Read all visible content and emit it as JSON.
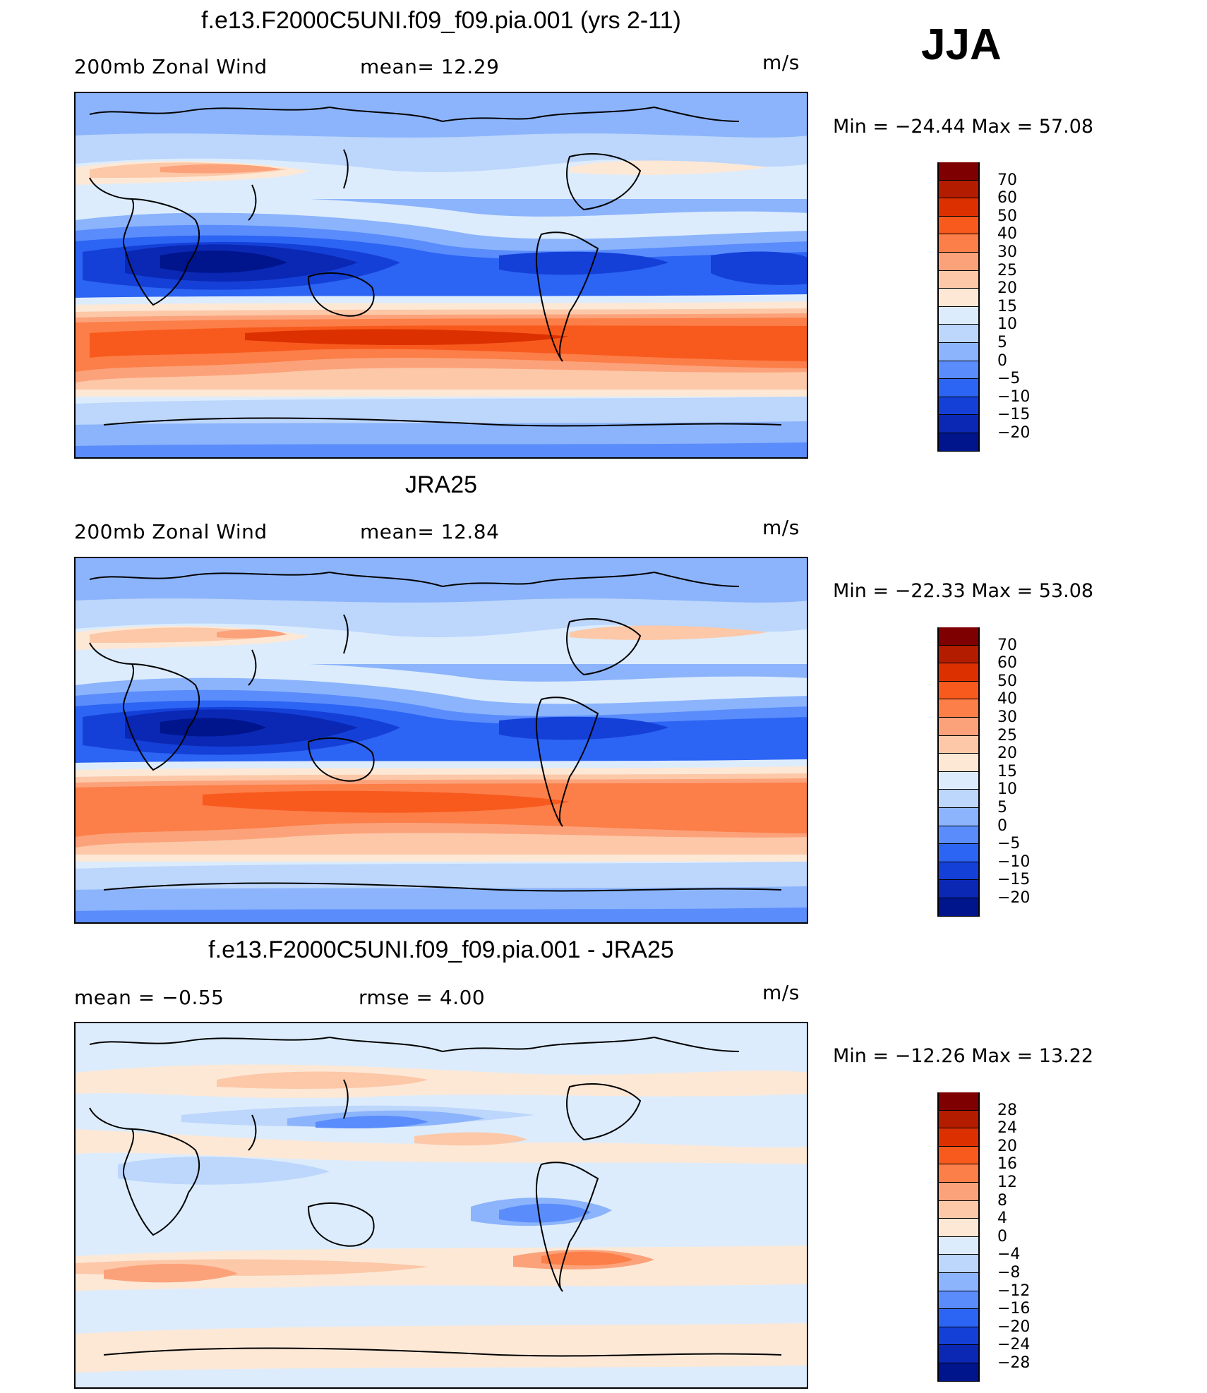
{
  "season": "JJA",
  "panels": [
    {
      "title": "f.e13.F2000C5UNI.f09_f09.pia.001 (yrs 2-11)",
      "left_label": "200mb  Zonal  Wind",
      "center_label": "mean=   12.29",
      "units": "m/s",
      "minmax": "Min  =  −24.44  Max  =    57.08"
    },
    {
      "title": "JRA25",
      "left_label": "200mb  Zonal  Wind",
      "center_label": "mean=   12.84",
      "units": "m/s",
      "minmax": "Min  =  −22.33  Max  =    53.08"
    },
    {
      "title": "f.e13.F2000C5UNI.f09_f09.pia.001 - JRA25",
      "left_label": "mean  =    −0.55",
      "center_label": "rmse  =     4.00",
      "units": "m/s",
      "minmax": "Min  =  −12.26  Max  =    13.22"
    }
  ],
  "colorbars": {
    "wind": {
      "colors": [
        "#7f0000",
        "#b41c00",
        "#dc3000",
        "#f85a1e",
        "#fc7e48",
        "#fca27a",
        "#fcc8a8",
        "#fde8d6",
        "#dcecfc",
        "#bcd6fc",
        "#8cb4fc",
        "#5a8cfc",
        "#2c64f4",
        "#1440d8",
        "#0a28b4",
        "#00148c"
      ],
      "ticks": [
        "70",
        "60",
        "50",
        "40",
        "30",
        "25",
        "20",
        "15",
        "10",
        "5",
        "0",
        "−5",
        "−10",
        "−15",
        "−20"
      ]
    },
    "diff": {
      "colors": [
        "#7f0000",
        "#b41c00",
        "#dc3000",
        "#f85a1e",
        "#fc7e48",
        "#fca27a",
        "#fcc8a8",
        "#fde8d6",
        "#dcecfc",
        "#bcd6fc",
        "#8cb4fc",
        "#5a8cfc",
        "#2c64f4",
        "#1440d8",
        "#0a28b4",
        "#00148c"
      ],
      "ticks": [
        "28",
        "24",
        "20",
        "16",
        "12",
        "8",
        "4",
        "0",
        "−4",
        "−8",
        "−12",
        "−16",
        "−20",
        "−24",
        "−28"
      ]
    }
  }
}
